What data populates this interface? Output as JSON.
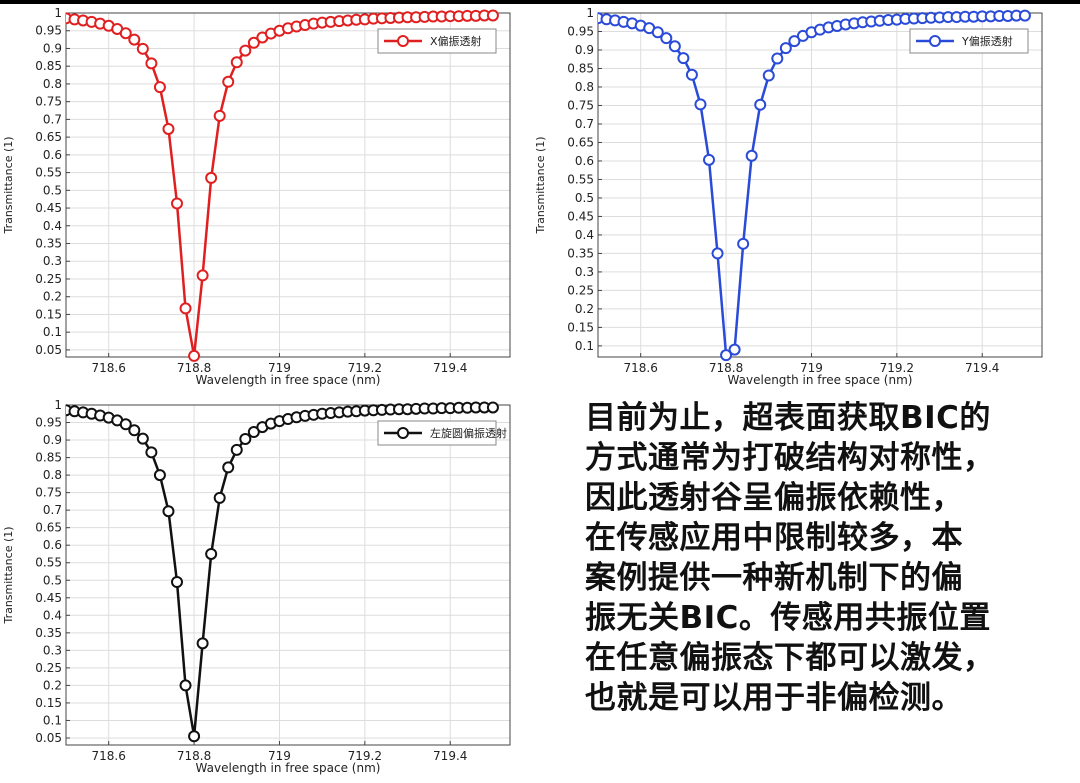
{
  "chart_data": [
    {
      "type": "line",
      "xlabel": "Wavelength in free space (nm)",
      "ylabel": "Transmittance (1)",
      "xlim": [
        718.5,
        719.54
      ],
      "ylim": [
        0.03,
        1.0
      ],
      "xticks": [
        "718.6",
        "718.8",
        "719",
        "719.2",
        "719.4"
      ],
      "yticks": [
        "0.05",
        "0.1",
        "0.15",
        "0.2",
        "0.25",
        "0.3",
        "0.35",
        "0.4",
        "0.45",
        "0.5",
        "0.55",
        "0.6",
        "0.65",
        "0.7",
        "0.75",
        "0.8",
        "0.85",
        "0.9",
        "0.95",
        "1"
      ],
      "grid": true,
      "legend": "top-right",
      "series": [
        {
          "name": "X偏振透射",
          "color": "#e02020",
          "marker": "circle-open",
          "x": [
            718.5,
            718.52,
            718.54,
            718.56,
            718.58,
            718.6,
            718.62,
            718.64,
            718.66,
            718.68,
            718.7,
            718.72,
            718.74,
            718.76,
            718.78,
            718.8,
            718.82,
            718.84,
            718.86,
            718.88,
            718.9,
            718.92,
            718.94,
            718.96,
            718.98,
            719.0,
            719.02,
            719.04,
            719.06,
            719.08,
            719.1,
            719.12,
            719.14,
            719.16,
            719.18,
            719.2,
            719.22,
            719.24,
            719.26,
            719.28,
            719.3,
            719.32,
            719.34,
            719.36,
            719.38,
            719.4,
            719.42,
            719.44,
            719.46,
            719.48,
            719.5
          ],
          "y": [
            0.985,
            0.982,
            0.979,
            0.975,
            0.97,
            0.964,
            0.955,
            0.943,
            0.925,
            0.899,
            0.858,
            0.791,
            0.673,
            0.463,
            0.167,
            0.033,
            0.26,
            0.535,
            0.71,
            0.806,
            0.861,
            0.894,
            0.916,
            0.931,
            0.942,
            0.95,
            0.957,
            0.962,
            0.966,
            0.97,
            0.973,
            0.975,
            0.977,
            0.979,
            0.981,
            0.982,
            0.984,
            0.985,
            0.986,
            0.987,
            0.988,
            0.988,
            0.989,
            0.99,
            0.99,
            0.991,
            0.991,
            0.992,
            0.992,
            0.993,
            0.993
          ]
        }
      ]
    },
    {
      "type": "line",
      "xlabel": "Wavelength in free space (nm)",
      "ylabel": "Transmittance (1)",
      "xlim": [
        718.5,
        719.54
      ],
      "ylim": [
        0.07,
        1.0
      ],
      "xticks": [
        "718.6",
        "718.8",
        "719",
        "719.2",
        "719.4"
      ],
      "yticks": [
        "0.1",
        "0.15",
        "0.2",
        "0.25",
        "0.3",
        "0.35",
        "0.4",
        "0.45",
        "0.5",
        "0.55",
        "0.6",
        "0.65",
        "0.7",
        "0.75",
        "0.8",
        "0.85",
        "0.9",
        "0.95",
        "1"
      ],
      "grid": true,
      "legend": "top-right",
      "series": [
        {
          "name": "Y偏振透射",
          "color": "#2a4bd7",
          "marker": "circle-open",
          "x": [
            718.5,
            718.52,
            718.54,
            718.56,
            718.58,
            718.6,
            718.62,
            718.64,
            718.66,
            718.68,
            718.7,
            718.72,
            718.74,
            718.76,
            718.78,
            718.8,
            718.82,
            718.84,
            718.86,
            718.88,
            718.9,
            718.92,
            718.94,
            718.96,
            718.98,
            719.0,
            719.02,
            719.04,
            719.06,
            719.08,
            719.1,
            719.12,
            719.14,
            719.16,
            719.18,
            719.2,
            719.22,
            719.24,
            719.26,
            719.28,
            719.3,
            719.32,
            719.34,
            719.36,
            719.38,
            719.4,
            719.42,
            719.44,
            719.46,
            719.48,
            719.5
          ],
          "y": [
            0.986,
            0.983,
            0.98,
            0.976,
            0.972,
            0.966,
            0.959,
            0.948,
            0.932,
            0.91,
            0.878,
            0.833,
            0.753,
            0.603,
            0.35,
            0.075,
            0.09,
            0.376,
            0.614,
            0.752,
            0.831,
            0.877,
            0.905,
            0.924,
            0.938,
            0.948,
            0.955,
            0.961,
            0.965,
            0.969,
            0.972,
            0.975,
            0.977,
            0.979,
            0.981,
            0.982,
            0.984,
            0.985,
            0.986,
            0.987,
            0.988,
            0.989,
            0.989,
            0.99,
            0.99,
            0.991,
            0.991,
            0.992,
            0.992,
            0.993,
            0.993
          ]
        }
      ]
    },
    {
      "type": "line",
      "xlabel": "Wavelength in free space (nm)",
      "ylabel": "Transmittance (1)",
      "xlim": [
        718.5,
        719.54
      ],
      "ylim": [
        0.03,
        1.0
      ],
      "xticks": [
        "718.6",
        "718.8",
        "719",
        "719.2",
        "719.4"
      ],
      "yticks": [
        "0.05",
        "0.1",
        "0.15",
        "0.2",
        "0.25",
        "0.3",
        "0.35",
        "0.4",
        "0.45",
        "0.5",
        "0.55",
        "0.6",
        "0.65",
        "0.7",
        "0.75",
        "0.8",
        "0.85",
        "0.9",
        "0.95",
        "1"
      ],
      "grid": true,
      "legend": "top-right",
      "series": [
        {
          "name": "左旋圆偏振透射",
          "color": "#111111",
          "marker": "circle-open",
          "x": [
            718.5,
            718.52,
            718.54,
            718.56,
            718.58,
            718.6,
            718.62,
            718.64,
            718.66,
            718.68,
            718.7,
            718.72,
            718.74,
            718.76,
            718.78,
            718.8,
            718.82,
            718.84,
            718.86,
            718.88,
            718.9,
            718.92,
            718.94,
            718.96,
            718.98,
            719.0,
            719.02,
            719.04,
            719.06,
            719.08,
            719.1,
            719.12,
            719.14,
            719.16,
            719.18,
            719.2,
            719.22,
            719.24,
            719.26,
            719.28,
            719.3,
            719.32,
            719.34,
            719.36,
            719.38,
            719.4,
            719.42,
            719.44,
            719.46,
            719.48,
            719.5
          ],
          "y": [
            0.985,
            0.982,
            0.979,
            0.975,
            0.97,
            0.964,
            0.956,
            0.945,
            0.928,
            0.904,
            0.865,
            0.8,
            0.697,
            0.495,
            0.2,
            0.055,
            0.32,
            0.575,
            0.735,
            0.822,
            0.872,
            0.903,
            0.923,
            0.937,
            0.947,
            0.954,
            0.96,
            0.965,
            0.969,
            0.972,
            0.975,
            0.977,
            0.979,
            0.981,
            0.982,
            0.984,
            0.985,
            0.986,
            0.987,
            0.988,
            0.988,
            0.989,
            0.99,
            0.99,
            0.991,
            0.991,
            0.992,
            0.992,
            0.993,
            0.993,
            0.993
          ]
        }
      ]
    }
  ],
  "note_lines": [
    "目前为止，超表面获取BIC的",
    "方式通常为打破结构对称性，",
    "因此透射谷呈偏振依赖性，",
    "在传感应用中限制较多，本",
    "案例提供一种新机制下的偏",
    "振无关BIC。传感用共振位置",
    "在任意偏振态下都可以激发，",
    "也就是可以用于非偏检测。"
  ]
}
